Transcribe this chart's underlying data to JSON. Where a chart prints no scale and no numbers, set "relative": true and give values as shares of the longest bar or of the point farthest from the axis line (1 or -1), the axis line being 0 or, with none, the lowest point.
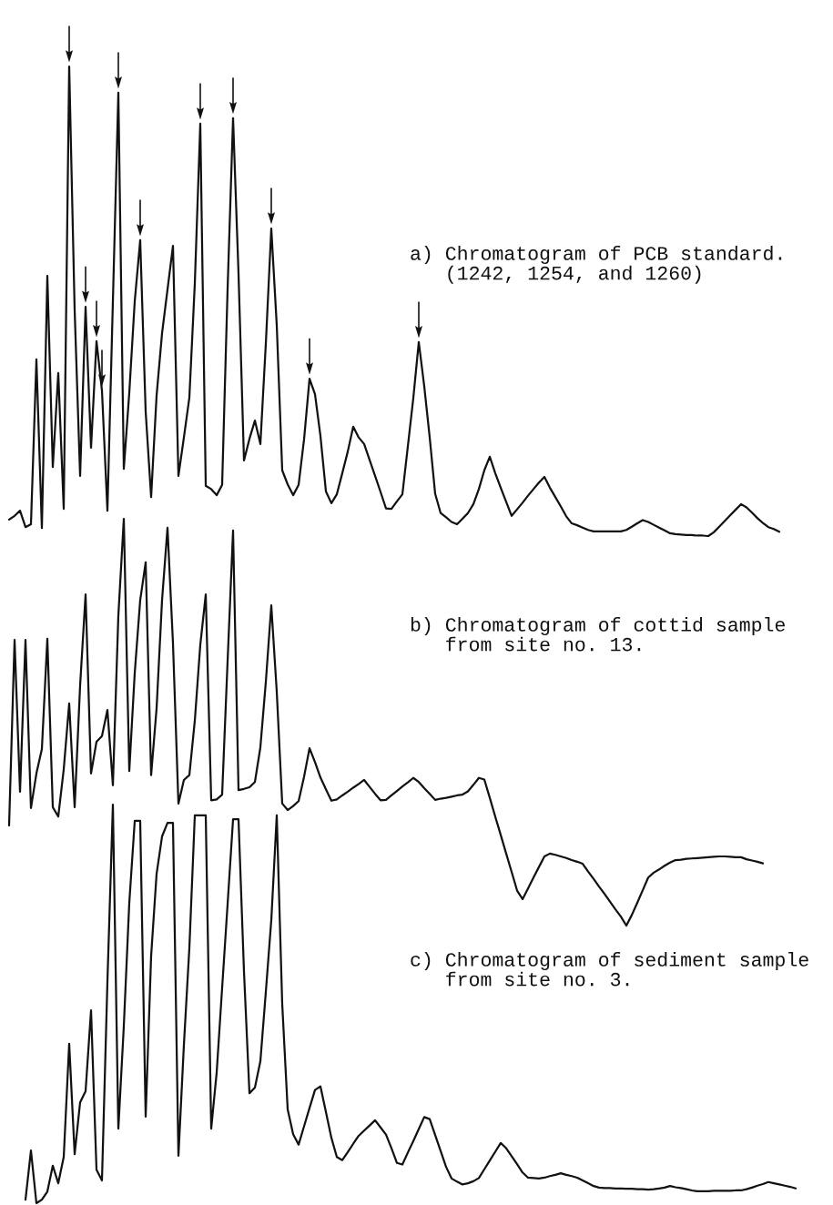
{
  "chart_data": [
    {
      "type": "line",
      "relative": true,
      "title": "a) Chromatogram of PCB standard.\n   (1242, 1254, and 1260)",
      "categories": [
        null,
        null,
        null,
        null,
        null,
        null,
        null,
        null,
        null,
        null,
        null,
        null,
        null,
        null,
        null,
        null,
        null,
        null,
        null,
        null,
        null,
        null,
        null,
        null,
        null,
        null,
        null,
        null,
        null,
        null,
        null,
        null,
        null,
        null,
        null,
        null,
        null,
        null,
        null,
        null,
        null,
        null,
        null,
        null,
        null,
        null,
        null,
        null,
        null,
        null,
        null,
        null,
        null,
        null,
        null,
        null,
        null,
        null,
        null,
        null,
        null,
        null,
        null,
        null,
        null,
        null,
        null,
        null,
        null,
        null,
        null,
        null,
        null,
        null,
        null,
        null,
        null,
        null,
        null,
        null,
        null,
        null,
        null,
        null,
        null,
        null,
        null,
        null,
        null,
        null,
        null,
        null,
        null,
        null,
        null,
        null,
        null,
        null,
        null,
        null,
        null,
        null,
        null,
        null,
        null,
        null,
        null,
        null,
        null,
        null,
        null,
        null,
        null,
        null,
        null,
        null,
        null,
        null,
        null,
        null,
        null,
        null,
        null,
        null,
        null,
        null,
        null,
        null,
        null,
        null,
        null,
        null,
        null,
        null,
        null,
        null,
        null,
        null,
        null,
        null,
        null,
        null
      ],
      "series": [
        {
          "color": "#111111",
          "values": [
            0.035,
            0.043,
            0.054,
            0.019,
            0.025,
            0.376,
            0.017,
            0.554,
            0.147,
            0.347,
            0.058,
            1.0,
            0.481,
            0.128,
            0.488,
            0.188,
            0.415,
            0.31,
            0.054,
            0.5,
            0.944,
            0.143,
            0.305,
            0.5,
            0.63,
            0.265,
            0.083,
            0.299,
            0.432,
            0.525,
            0.618,
            0.128,
            0.21,
            0.295,
            0.538,
            0.878,
            0.107,
            0.1,
            0.087,
            0.109,
            0.526,
            0.89,
            0.559,
            0.161,
            0.207,
            0.246,
            0.196,
            0.41,
            0.655,
            0.449,
            0.14,
            0.11,
            0.087,
            0.109,
            0.206,
            0.335,
            0.302,
            0.213,
            0.095,
            0.07,
            0.089,
            0.134,
            0.18,
            0.233,
            0.21,
            0.196,
            0.162,
            0.128,
            0.094,
            0.059,
            0.058,
            0.074,
            0.089,
            0.191,
            0.294,
            0.413,
            0.319,
            0.21,
            0.09,
            0.049,
            0.04,
            0.03,
            0.025,
            0.037,
            0.049,
            0.068,
            0.1,
            0.14,
            0.169,
            0.134,
            0.103,
            0.073,
            0.043,
            0.057,
            0.071,
            0.086,
            0.1,
            0.114,
            0.126,
            0.103,
            0.083,
            0.063,
            0.042,
            0.027,
            0.023,
            0.018,
            0.013,
            0.01,
            0.01,
            0.01,
            0.01,
            0.01,
            0.01,
            0.013,
            0.02,
            0.027,
            0.034,
            0.03,
            0.024,
            0.018,
            0.012,
            0.006,
            0.004,
            0.003,
            0.002,
            0.002,
            0.001,
            0.001,
            0.0,
            0.008,
            0.02,
            0.032,
            0.044,
            0.056,
            0.068,
            0.061,
            0.05,
            0.038,
            0.028,
            0.019,
            0.015,
            0.009
          ]
        }
      ]
    },
    {
      "type": "line",
      "relative": true,
      "title": "b) Chromatogram of cottid sample\n   from site no. 13.",
      "categories": [
        null,
        null,
        null,
        null,
        null,
        null,
        null,
        null,
        null,
        null,
        null,
        null,
        null,
        null,
        null,
        null,
        null,
        null,
        null,
        null,
        null,
        null,
        null,
        null,
        null,
        null,
        null,
        null,
        null,
        null,
        null,
        null,
        null,
        null,
        null,
        null,
        null,
        null,
        null,
        null,
        null,
        null,
        null,
        null,
        null,
        null,
        null,
        null,
        null,
        null,
        null,
        null,
        null,
        null,
        null,
        null,
        null,
        null,
        null,
        null,
        null,
        null,
        null,
        null,
        null,
        null,
        null,
        null,
        null,
        null,
        null,
        null,
        null,
        null,
        null,
        null,
        null,
        null,
        null,
        null,
        null,
        null,
        null,
        null,
        null,
        null,
        null,
        null,
        null,
        null,
        null,
        null,
        null,
        null,
        null,
        null,
        null,
        null,
        null,
        null,
        null,
        null,
        null,
        null,
        null,
        null,
        null,
        null,
        null,
        null,
        null,
        null,
        null,
        null,
        null,
        null,
        null,
        null,
        null,
        null,
        null,
        null,
        null,
        null,
        null,
        null,
        null,
        null,
        null,
        null,
        null,
        null,
        null,
        null,
        null,
        null,
        null,
        null,
        null
      ],
      "series": [
        {
          "color": "#111111",
          "values": [
            0.246,
            0.702,
            0.329,
            0.702,
            0.289,
            0.374,
            0.434,
            0.705,
            0.291,
            0.268,
            0.384,
            0.546,
            0.291,
            0.59,
            0.814,
            0.374,
            0.452,
            0.466,
            0.53,
            0.345,
            0.762,
            1.0,
            0.38,
            0.621,
            0.8,
            0.893,
            0.37,
            0.534,
            0.8,
            0.978,
            0.694,
            0.3,
            0.358,
            0.37,
            0.504,
            0.69,
            0.814,
            0.308,
            0.31,
            0.322,
            0.65,
            0.971,
            0.333,
            0.336,
            0.34,
            0.353,
            0.438,
            0.599,
            0.787,
            0.575,
            0.3,
            0.284,
            0.294,
            0.306,
            0.366,
            0.436,
            0.402,
            0.364,
            0.335,
            0.307,
            0.31,
            0.32,
            0.329,
            0.339,
            0.348,
            0.358,
            0.341,
            0.324,
            0.308,
            0.309,
            0.32,
            0.331,
            0.342,
            0.352,
            0.363,
            0.353,
            0.338,
            0.324,
            0.309,
            0.312,
            0.314,
            0.317,
            0.32,
            0.322,
            0.33,
            0.346,
            0.363,
            0.359,
            0.314,
            0.268,
            0.223,
            0.177,
            0.132,
            0.086,
            0.065,
            0.091,
            0.118,
            0.144,
            0.17,
            0.177,
            0.174,
            0.17,
            0.166,
            0.161,
            0.157,
            0.152,
            0.133,
            0.115,
            0.096,
            0.078,
            0.059,
            0.04,
            0.022,
            0.0,
            0.026,
            0.056,
            0.087,
            0.118,
            0.13,
            0.138,
            0.147,
            0.155,
            0.161,
            0.162,
            0.164,
            0.165,
            0.166,
            0.167,
            0.168,
            0.169,
            0.17,
            0.17,
            0.169,
            0.168,
            0.168,
            0.163,
            0.16,
            0.157,
            0.153
          ]
        }
      ]
    },
    {
      "type": "line",
      "relative": true,
      "title": "c) Chromatogram of sediment sample\n   from site no. 3.",
      "categories": [
        null,
        null,
        null,
        null,
        null,
        null,
        null,
        null,
        null,
        null,
        null,
        null,
        null,
        null,
        null,
        null,
        null,
        null,
        null,
        null,
        null,
        null,
        null,
        null,
        null,
        null,
        null,
        null,
        null,
        null,
        null,
        null,
        null,
        null,
        null,
        null,
        null,
        null,
        null,
        null,
        null,
        null,
        null,
        null,
        null,
        null,
        null,
        null,
        null,
        null,
        null,
        null,
        null,
        null,
        null,
        null,
        null,
        null,
        null,
        null,
        null,
        null,
        null,
        null,
        null,
        null,
        null,
        null,
        null,
        null,
        null,
        null,
        null,
        null,
        null,
        null,
        null,
        null,
        null,
        null,
        null,
        null,
        null,
        null,
        null,
        null,
        null,
        null,
        null,
        null,
        null,
        null,
        null,
        null,
        null,
        null,
        null,
        null,
        null,
        null,
        null,
        null,
        null,
        null,
        null,
        null,
        null,
        null,
        null,
        null,
        null,
        null,
        null,
        null,
        null,
        null,
        null,
        null,
        null,
        null,
        null,
        null,
        null,
        null,
        null,
        null,
        null,
        null,
        null,
        null,
        null,
        null,
        null,
        null,
        null,
        null,
        null,
        null,
        null,
        null,
        null,
        null
      ],
      "series": [
        {
          "color": "#111111",
          "values": [
            0.009,
            0.132,
            0.0,
            0.009,
            0.029,
            0.094,
            0.05,
            0.116,
            0.4,
            0.123,
            0.253,
            0.281,
            0.484,
            0.084,
            0.057,
            0.556,
            1.0,
            0.187,
            0.444,
            0.753,
            0.959,
            0.959,
            0.217,
            0.62,
            0.826,
            0.92,
            0.954,
            0.954,
            0.119,
            0.397,
            0.64,
            0.973,
            0.973,
            0.973,
            0.187,
            0.328,
            0.54,
            0.75,
            0.963,
            0.963,
            0.581,
            0.276,
            0.29,
            0.356,
            0.53,
            0.71,
            0.973,
            0.5,
            0.235,
            0.173,
            0.147,
            0.193,
            0.239,
            0.284,
            0.293,
            0.229,
            0.164,
            0.116,
            0.108,
            0.128,
            0.149,
            0.169,
            0.182,
            0.195,
            0.208,
            0.19,
            0.172,
            0.138,
            0.101,
            0.097,
            0.127,
            0.156,
            0.186,
            0.216,
            0.211,
            0.171,
            0.131,
            0.091,
            0.062,
            0.054,
            0.047,
            0.05,
            0.055,
            0.063,
            0.085,
            0.107,
            0.129,
            0.151,
            0.138,
            0.118,
            0.098,
            0.077,
            0.064,
            0.063,
            0.062,
            0.064,
            0.068,
            0.071,
            0.075,
            0.071,
            0.068,
            0.064,
            0.057,
            0.05,
            0.043,
            0.039,
            0.038,
            0.038,
            0.037,
            0.037,
            0.036,
            0.036,
            0.035,
            0.035,
            0.034,
            0.035,
            0.037,
            0.039,
            0.043,
            0.04,
            0.038,
            0.035,
            0.032,
            0.03,
            0.03,
            0.03,
            0.031,
            0.031,
            0.031,
            0.031,
            0.032,
            0.032,
            0.035,
            0.039,
            0.044,
            0.048,
            0.053,
            0.05,
            0.047,
            0.044,
            0.041,
            0.037
          ]
        }
      ]
    }
  ]
}
